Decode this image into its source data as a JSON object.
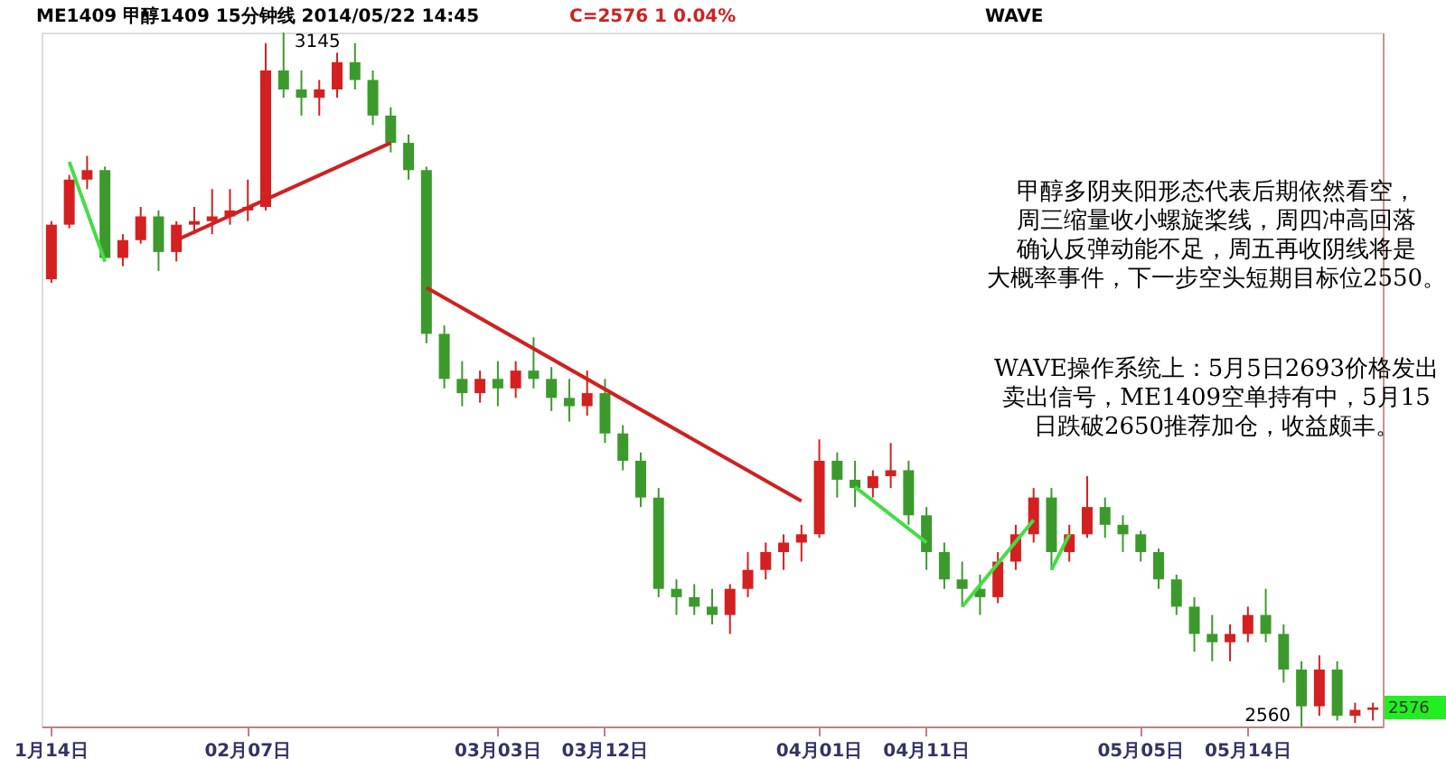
{
  "chart_data": {
    "type": "candlestick",
    "categories": [
      "1月14日",
      null,
      null,
      null,
      null,
      null,
      null,
      null,
      null,
      null,
      null,
      "02月07日",
      null,
      null,
      null,
      null,
      null,
      null,
      null,
      null,
      null,
      null,
      null,
      null,
      null,
      "03月03日",
      null,
      null,
      null,
      null,
      null,
      "03月12日",
      null,
      null,
      null,
      null,
      null,
      null,
      null,
      null,
      null,
      null,
      null,
      "04月01日",
      null,
      null,
      null,
      null,
      null,
      "04月11日",
      null,
      null,
      null,
      null,
      null,
      null,
      null,
      null,
      null,
      null,
      null,
      "05月05日",
      null,
      null,
      null,
      null,
      null,
      "05月14日",
      null,
      null,
      null,
      null,
      null,
      null,
      null
    ],
    "ohlc": [
      [
        2937,
        2986,
        2934,
        2983
      ],
      [
        2983,
        3025,
        2980,
        3021
      ],
      [
        3021,
        3041,
        3013,
        3029
      ],
      [
        3029,
        3032,
        2952,
        2955
      ],
      [
        2955,
        2975,
        2948,
        2970
      ],
      [
        2970,
        2998,
        2967,
        2990
      ],
      [
        2990,
        2995,
        2944,
        2960
      ],
      [
        2960,
        2986,
        2952,
        2983
      ],
      [
        2983,
        2998,
        2975,
        2986
      ],
      [
        2986,
        3013,
        2975,
        2990
      ],
      [
        2990,
        3013,
        2983,
        2995
      ],
      [
        2995,
        3021,
        2986,
        2998
      ],
      [
        2998,
        3136,
        2995,
        3113
      ],
      [
        3113,
        3145,
        3090,
        3097
      ],
      [
        3097,
        3113,
        3075,
        3090
      ],
      [
        3090,
        3105,
        3075,
        3097
      ],
      [
        3097,
        3128,
        3090,
        3120
      ],
      [
        3120,
        3136,
        3097,
        3105
      ],
      [
        3105,
        3113,
        3067,
        3075
      ],
      [
        3075,
        3082,
        3044,
        3052
      ],
      [
        3052,
        3059,
        3021,
        3029
      ],
      [
        3029,
        3032,
        2883,
        2891
      ],
      [
        2891,
        2898,
        2845,
        2853
      ],
      [
        2853,
        2868,
        2830,
        2841
      ],
      [
        2841,
        2860,
        2833,
        2853
      ],
      [
        2853,
        2868,
        2830,
        2845
      ],
      [
        2845,
        2868,
        2837,
        2860
      ],
      [
        2860,
        2888,
        2845,
        2853
      ],
      [
        2853,
        2863,
        2826,
        2837
      ],
      [
        2837,
        2853,
        2817,
        2830
      ],
      [
        2830,
        2860,
        2822,
        2841
      ],
      [
        2841,
        2853,
        2799,
        2807
      ],
      [
        2807,
        2814,
        2776,
        2784
      ],
      [
        2784,
        2791,
        2745,
        2753
      ],
      [
        2753,
        2761,
        2669,
        2676
      ],
      [
        2676,
        2684,
        2654,
        2669
      ],
      [
        2669,
        2680,
        2654,
        2661
      ],
      [
        2661,
        2676,
        2646,
        2654
      ],
      [
        2654,
        2680,
        2638,
        2676
      ],
      [
        2676,
        2707,
        2669,
        2692
      ],
      [
        2692,
        2715,
        2684,
        2707
      ],
      [
        2707,
        2722,
        2692,
        2715
      ],
      [
        2715,
        2730,
        2699,
        2722
      ],
      [
        2722,
        2802,
        2719,
        2784
      ],
      [
        2784,
        2791,
        2753,
        2768
      ],
      [
        2768,
        2784,
        2745,
        2761
      ],
      [
        2761,
        2776,
        2753,
        2771
      ],
      [
        2771,
        2799,
        2761,
        2776
      ],
      [
        2776,
        2784,
        2730,
        2738
      ],
      [
        2738,
        2745,
        2692,
        2707
      ],
      [
        2707,
        2715,
        2676,
        2684
      ],
      [
        2684,
        2699,
        2661,
        2676
      ],
      [
        2676,
        2688,
        2654,
        2669
      ],
      [
        2669,
        2707,
        2664,
        2699
      ],
      [
        2699,
        2730,
        2692,
        2722
      ],
      [
        2722,
        2761,
        2715,
        2753
      ],
      [
        2753,
        2761,
        2692,
        2707
      ],
      [
        2707,
        2730,
        2699,
        2722
      ],
      [
        2722,
        2771,
        2719,
        2745
      ],
      [
        2745,
        2753,
        2719,
        2730
      ],
      [
        2730,
        2738,
        2707,
        2722
      ],
      [
        2722,
        2725,
        2699,
        2707
      ],
      [
        2707,
        2710,
        2676,
        2684
      ],
      [
        2684,
        2688,
        2654,
        2661
      ],
      [
        2661,
        2669,
        2623,
        2638
      ],
      [
        2638,
        2654,
        2615,
        2631
      ],
      [
        2631,
        2646,
        2615,
        2638
      ],
      [
        2638,
        2661,
        2631,
        2654
      ],
      [
        2654,
        2676,
        2631,
        2638
      ],
      [
        2638,
        2646,
        2597,
        2608
      ],
      [
        2608,
        2615,
        2560,
        2577
      ],
      [
        2577,
        2620,
        2569,
        2608
      ],
      [
        2608,
        2615,
        2565,
        2569
      ],
      [
        2569,
        2580,
        2563,
        2574
      ],
      [
        2574,
        2580,
        2565,
        2576
      ]
    ],
    "series": [
      {
        "type": "line",
        "color": "#44dd44",
        "values": [
          null,
          3036,
          null,
          2952,
          null,
          null,
          null,
          null,
          null,
          null,
          null,
          null,
          null,
          null,
          null,
          null,
          null,
          null,
          null,
          null,
          null,
          null,
          null,
          null,
          null,
          null,
          null,
          null,
          null,
          null,
          null,
          null,
          null,
          null,
          null,
          null,
          null,
          null,
          null,
          null,
          null,
          null,
          null,
          null,
          null,
          null,
          null,
          null,
          null,
          null,
          null,
          null,
          null,
          null,
          null,
          null,
          null,
          null,
          null,
          null,
          null,
          null,
          null,
          null,
          null,
          null,
          null,
          null,
          null,
          null,
          null,
          null,
          null,
          null,
          null
        ]
      },
      {
        "type": "line",
        "color": "#d02020",
        "values": [
          null,
          null,
          null,
          null,
          null,
          null,
          null,
          2970,
          null,
          null,
          null,
          null,
          null,
          null,
          null,
          null,
          null,
          null,
          null,
          3052,
          null,
          null,
          null,
          null,
          null,
          null,
          null,
          null,
          null,
          null,
          null,
          null,
          null,
          null,
          null,
          null,
          null,
          null,
          null,
          null,
          null,
          null,
          null,
          null,
          null,
          null,
          null,
          null,
          null,
          null,
          null,
          null,
          null,
          null,
          null,
          null,
          null,
          null,
          null,
          null,
          null,
          null,
          null,
          null,
          null,
          null,
          null,
          null,
          null,
          null,
          null,
          null,
          null,
          null,
          null
        ]
      },
      {
        "type": "line",
        "color": "#d02020",
        "values": [
          null,
          null,
          null,
          null,
          null,
          null,
          null,
          null,
          null,
          null,
          null,
          null,
          null,
          null,
          null,
          null,
          null,
          null,
          null,
          null,
          null,
          2930,
          null,
          null,
          null,
          null,
          null,
          null,
          null,
          null,
          null,
          null,
          null,
          null,
          null,
          null,
          null,
          null,
          null,
          null,
          null,
          null,
          2750,
          null,
          null,
          null,
          null,
          null,
          null,
          null,
          null,
          null,
          null,
          null,
          null,
          null,
          null,
          null,
          null,
          null,
          null,
          null,
          null,
          null,
          null,
          null,
          null,
          null,
          null,
          null,
          null,
          null,
          null,
          null,
          null
        ]
      },
      {
        "type": "line",
        "color": "#44dd44",
        "values": [
          null,
          null,
          null,
          null,
          null,
          null,
          null,
          null,
          null,
          null,
          null,
          null,
          null,
          null,
          null,
          null,
          null,
          null,
          null,
          null,
          null,
          null,
          null,
          null,
          null,
          null,
          null,
          null,
          null,
          null,
          null,
          null,
          null,
          null,
          null,
          null,
          null,
          null,
          null,
          null,
          null,
          null,
          null,
          null,
          null,
          2762,
          null,
          null,
          null,
          2715,
          null,
          null,
          null,
          null,
          null,
          null,
          null,
          null,
          null,
          null,
          null,
          null,
          null,
          null,
          null,
          null,
          null,
          null,
          null,
          null,
          null,
          null,
          null,
          null,
          null
        ]
      },
      {
        "type": "line",
        "color": "#44dd44",
        "values": [
          null,
          null,
          null,
          null,
          null,
          null,
          null,
          null,
          null,
          null,
          null,
          null,
          null,
          null,
          null,
          null,
          null,
          null,
          null,
          null,
          null,
          null,
          null,
          null,
          null,
          null,
          null,
          null,
          null,
          null,
          null,
          null,
          null,
          null,
          null,
          null,
          null,
          null,
          null,
          null,
          null,
          null,
          null,
          null,
          null,
          null,
          null,
          null,
          null,
          null,
          null,
          2661,
          null,
          null,
          null,
          2734,
          null,
          null,
          null,
          null,
          null,
          null,
          null,
          null,
          null,
          null,
          null,
          null,
          null,
          null,
          null,
          null,
          null,
          null,
          null
        ]
      },
      {
        "type": "line",
        "color": "#44dd44",
        "values": [
          null,
          null,
          null,
          null,
          null,
          null,
          null,
          null,
          null,
          null,
          null,
          null,
          null,
          null,
          null,
          null,
          null,
          null,
          null,
          null,
          null,
          null,
          null,
          null,
          null,
          null,
          null,
          null,
          null,
          null,
          null,
          null,
          null,
          null,
          null,
          null,
          null,
          null,
          null,
          null,
          null,
          null,
          null,
          null,
          null,
          null,
          null,
          null,
          null,
          null,
          null,
          null,
          null,
          null,
          null,
          null,
          2692,
          2722,
          null,
          null,
          null,
          null,
          null,
          null,
          null,
          null,
          null,
          null,
          null,
          null,
          null,
          null,
          null,
          null,
          null
        ]
      }
    ],
    "annotations": [
      "ME1409 甲醇1409 15分钟线  2014/05/22 14:45",
      "C=2576 1 0.04%",
      "WAVE",
      "甲醇多阴夹阳形态代表后期依然看空，周三缩量收小螺旋桨线，周四冲高回落确认反弹动能不足，周五再收阴线将是大概率事件，下一步空头短期目标位2550。",
      "WAVE操作系统上：5月5日2693价格发出卖出信号，ME1409空单持有中，5月15日跌破2650推荐加仓，收益颇丰。",
      "3145",
      "2560",
      "2576"
    ],
    "grid": false
  }
}
